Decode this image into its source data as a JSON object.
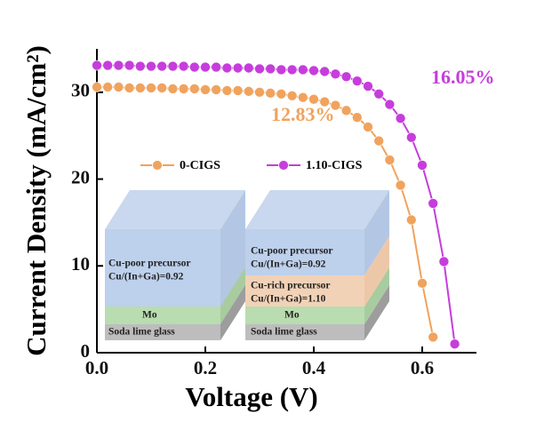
{
  "chart_data": {
    "type": "line",
    "x_label": "Voltage (V)",
    "y_label": "Current Density (mA/cm²)",
    "xlim": [
      0,
      0.7
    ],
    "ylim": [
      0,
      35
    ],
    "xticks": [
      {
        "value": 0,
        "label": "0.0"
      },
      0.2,
      0.4,
      0.6
    ],
    "yticks": [
      0,
      10,
      20,
      30
    ],
    "series": [
      {
        "name": "0-CIGS",
        "color": "#f0a35e",
        "x": [
          0,
          0.02,
          0.04,
          0.06,
          0.08,
          0.1,
          0.12,
          0.14,
          0.16,
          0.18,
          0.2,
          0.22,
          0.24,
          0.26,
          0.28,
          0.3,
          0.32,
          0.34,
          0.36,
          0.38,
          0.4,
          0.42,
          0.44,
          0.46,
          0.48,
          0.5,
          0.52,
          0.54,
          0.56,
          0.58,
          0.6,
          0.62
        ],
        "values": [
          30.6,
          30.6,
          30.6,
          30.5,
          30.5,
          30.5,
          30.5,
          30.4,
          30.4,
          30.4,
          30.3,
          30.3,
          30.2,
          30.2,
          30.1,
          30.0,
          29.9,
          29.8,
          29.6,
          29.4,
          29.2,
          28.9,
          28.5,
          27.9,
          27.1,
          26.0,
          24.4,
          22.2,
          19.3,
          15.3,
          8.0,
          1.8
        ]
      },
      {
        "name": "1.10-CIGS",
        "color": "#c63ddc",
        "x": [
          0,
          0.02,
          0.04,
          0.06,
          0.08,
          0.1,
          0.12,
          0.14,
          0.16,
          0.18,
          0.2,
          0.22,
          0.24,
          0.26,
          0.28,
          0.3,
          0.32,
          0.34,
          0.36,
          0.38,
          0.4,
          0.42,
          0.44,
          0.46,
          0.48,
          0.5,
          0.52,
          0.54,
          0.56,
          0.58,
          0.6,
          0.62,
          0.64,
          0.66
        ],
        "values": [
          33.1,
          33.1,
          33.1,
          33.1,
          33.0,
          33.0,
          33.0,
          33.0,
          33.0,
          32.9,
          32.9,
          32.9,
          32.8,
          32.8,
          32.8,
          32.7,
          32.7,
          32.6,
          32.6,
          32.6,
          32.5,
          32.4,
          32.1,
          31.8,
          31.3,
          30.7,
          29.8,
          28.6,
          27.0,
          24.8,
          21.6,
          17.2,
          10.5,
          1.0
        ]
      }
    ],
    "annotations": [
      {
        "text": "12.83%",
        "color": "#f0a35e"
      },
      {
        "text": "16.05%",
        "color": "#c63ddc"
      }
    ],
    "insets": [
      {
        "labels": [
          "Cu-poor precursor",
          "Cu/(In+Ga)=0.92",
          "Mo",
          "Soda lime glass"
        ]
      },
      {
        "labels": [
          "Cu-poor precursor",
          "Cu/(In+Ga)=0.92",
          "Cu-rich precursor",
          "Cu/(In+Ga)=1.10",
          "Mo",
          "Soda lime glass"
        ]
      }
    ]
  }
}
